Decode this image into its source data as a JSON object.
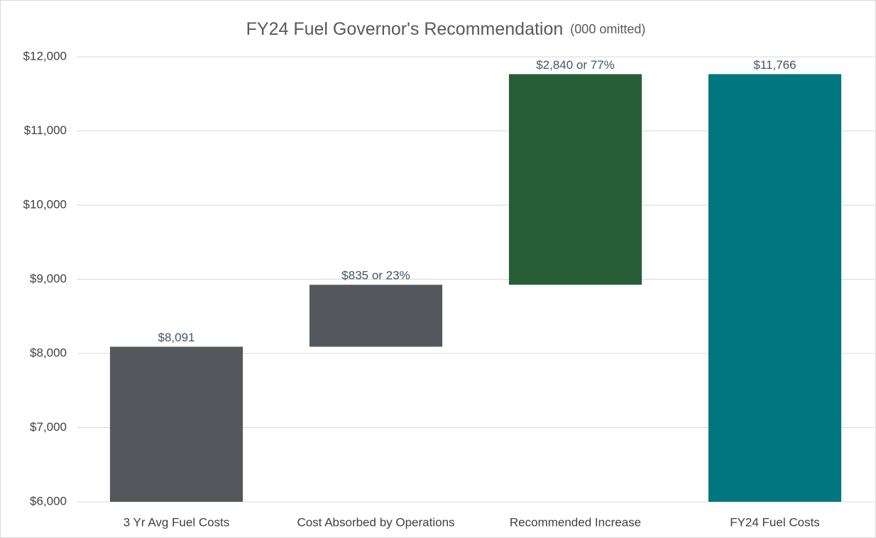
{
  "chart_data": {
    "type": "waterfall",
    "title": "FY24 Fuel Governor's Recommendation",
    "subtitle": "(000 omitted)",
    "categories": [
      "3 Yr Avg Fuel Costs",
      "Cost Absorbed by Operations",
      "Recommended Increase",
      "FY24 Fuel Costs"
    ],
    "values": [
      8091,
      835,
      2840,
      11766
    ],
    "value_labels": [
      "$8,091",
      "$835 or 23%",
      "$2,840 or 77%",
      "$11,766"
    ],
    "totals": [
      true,
      false,
      false,
      true
    ],
    "colors": [
      "#54575c",
      "#54575c",
      "#275e38",
      "#00767e"
    ],
    "ylim": [
      6000,
      12000
    ],
    "yticks": [
      {
        "value": 6000,
        "label": "$6,000"
      },
      {
        "value": 7000,
        "label": "$7,000"
      },
      {
        "value": 8000,
        "label": "$8,000"
      },
      {
        "value": 9000,
        "label": "$9,000"
      },
      {
        "value": 10000,
        "label": "$10,000"
      },
      {
        "value": 11000,
        "label": "$11,000"
      },
      {
        "value": 12000,
        "label": "$12,000"
      }
    ],
    "grid": true
  }
}
